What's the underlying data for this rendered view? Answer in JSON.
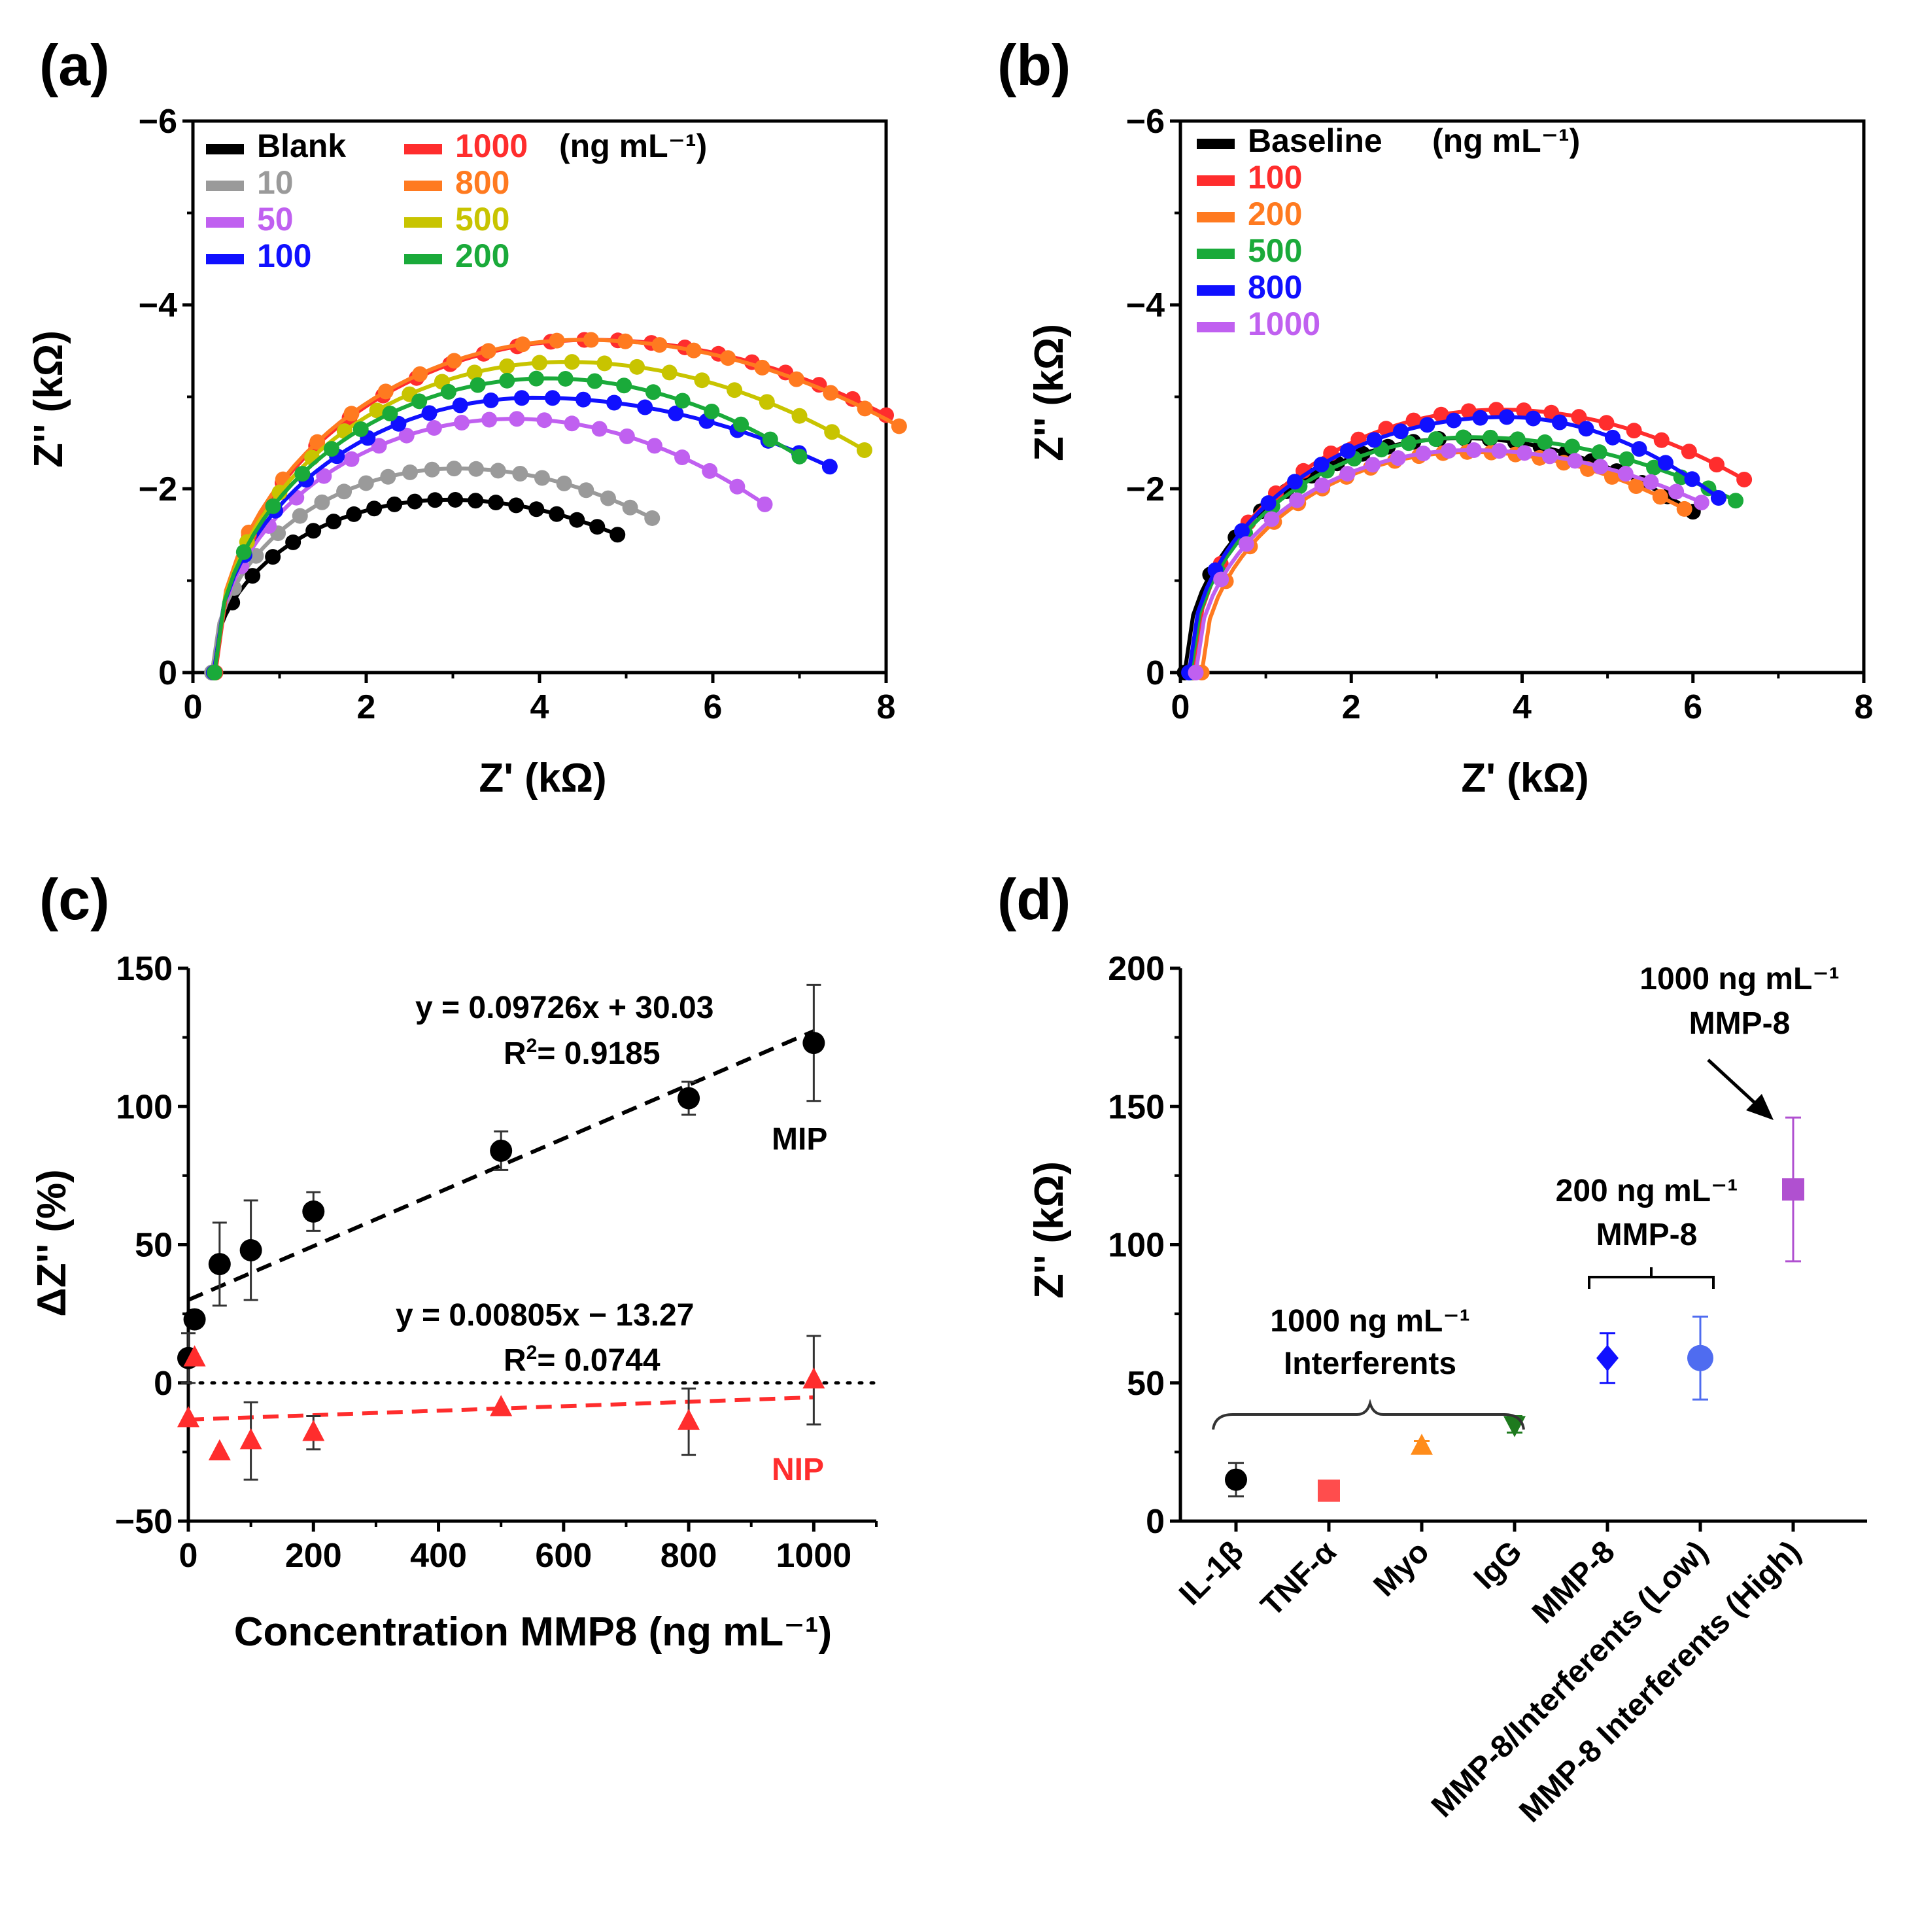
{
  "colors": {
    "black": "#000000",
    "gray": "#9a9a9a",
    "violet": "#c060f0",
    "blue": "#1010ff",
    "red": "#ff2d2d",
    "orange": "#ff7a20",
    "olive": "#c8c400",
    "green": "#1aaa3a",
    "dark_green": "#1e7a1e",
    "red_light": "#ff4d4d",
    "orange_tri": "#ff8c1a",
    "purple_sq": "#b050d0",
    "blue_circle": "#4f6cf0"
  },
  "chart_data": [
    {
      "panel_label": "(a)",
      "type": "line",
      "xlabel": "Z' (kΩ)",
      "ylabel": "Z'' (kΩ)",
      "xlim": [
        0,
        8
      ],
      "ylim": [
        0,
        -6
      ],
      "xticks": [
        "0",
        "2",
        "4",
        "6",
        "8"
      ],
      "yticks": [
        "0",
        "−2",
        "−4",
        "−6"
      ],
      "legend_unit": "(ng mL⁻¹)",
      "series": [
        {
          "name": "Blank",
          "color": "black",
          "x0": 0.22,
          "R": 5.2,
          "peak_x": 2.95,
          "peak": 1.88,
          "x_end": 4.9,
          "y_end": 1.5
        },
        {
          "name": "10",
          "color": "gray",
          "x0": 0.22,
          "R": 5.7,
          "peak_x": 3.05,
          "peak": 2.22,
          "x_end": 5.3,
          "y_end": 1.68
        },
        {
          "name": "50",
          "color": "violet",
          "x0": 0.24,
          "R": 7.6,
          "peak_x": 3.7,
          "peak": 2.76,
          "x_end": 6.6,
          "y_end": 1.83
        },
        {
          "name": "100",
          "color": "blue",
          "x0": 0.24,
          "R": 8.6,
          "peak_x": 3.95,
          "peak": 2.99,
          "x_end": 7.35,
          "y_end": 2.24
        },
        {
          "name": "1000",
          "color": "red",
          "x0": 0.26,
          "R": 10.2,
          "peak_x": 4.6,
          "peak": 3.62,
          "x_end": 8.0,
          "y_end": 2.8
        },
        {
          "name": "800",
          "color": "orange",
          "x0": 0.25,
          "R": 9.8,
          "peak_x": 4.5,
          "peak": 3.62,
          "x_end": 8.15,
          "y_end": 2.68
        },
        {
          "name": "500",
          "color": "olive",
          "x0": 0.25,
          "R": 9.4,
          "peak_x": 4.3,
          "peak": 3.38,
          "x_end": 7.75,
          "y_end": 2.42
        },
        {
          "name": "200",
          "color": "green",
          "x0": 0.25,
          "R": 9.0,
          "peak_x": 4.1,
          "peak": 3.2,
          "x_end": 7.0,
          "y_end": 2.35
        }
      ]
    },
    {
      "panel_label": "(b)",
      "type": "line",
      "xlabel": "Z' (kΩ)",
      "ylabel": "Z'' (kΩ)",
      "xlim": [
        0,
        8
      ],
      "ylim": [
        0,
        -6
      ],
      "xticks": [
        "0",
        "2",
        "4",
        "6",
        "8"
      ],
      "yticks": [
        "0",
        "−2",
        "−4",
        "−6"
      ],
      "legend_unit": "(ng mL⁻¹)",
      "series": [
        {
          "name": "Baseline",
          "color": "black",
          "x0": 0.05,
          "R": 7.6,
          "peak_x": 3.3,
          "peak": 2.55,
          "x_end": 6.0,
          "y_end": 1.75
        },
        {
          "name": "100",
          "color": "red",
          "x0": 0.15,
          "R": 8.6,
          "peak_x": 3.75,
          "peak": 2.86,
          "x_end": 6.6,
          "y_end": 2.1
        },
        {
          "name": "200",
          "color": "orange",
          "x0": 0.25,
          "R": 7.2,
          "peak_x": 3.4,
          "peak": 2.4,
          "x_end": 5.9,
          "y_end": 1.78
        },
        {
          "name": "500",
          "color": "green",
          "x0": 0.12,
          "R": 8.3,
          "peak_x": 3.4,
          "peak": 2.56,
          "x_end": 6.5,
          "y_end": 1.87
        },
        {
          "name": "800",
          "color": "blue",
          "x0": 0.1,
          "R": 8.0,
          "peak_x": 3.8,
          "peak": 2.78,
          "x_end": 6.3,
          "y_end": 1.9
        },
        {
          "name": "1000",
          "color": "violet",
          "x0": 0.18,
          "R": 7.4,
          "peak_x": 3.4,
          "peak": 2.42,
          "x_end": 6.1,
          "y_end": 1.85
        }
      ]
    },
    {
      "panel_label": "(c)",
      "type": "scatter",
      "xlabel": "Concentration MMP8 (ng mL⁻¹)",
      "ylabel": "ΔZ'' (%)",
      "xlim": [
        0,
        1100
      ],
      "ylim": [
        -50,
        150
      ],
      "xticks": [
        "0",
        "200",
        "400",
        "600",
        "800",
        "1000"
      ],
      "yticks": [
        "−50",
        "0",
        "50",
        "100",
        "150"
      ],
      "series": [
        {
          "name": "MIP",
          "color": "black",
          "marker": "circle",
          "points": [
            {
              "x": 0,
              "y": 9,
              "err": 9
            },
            {
              "x": 10,
              "y": 23,
              "err": 0
            },
            {
              "x": 50,
              "y": 43,
              "err": 15
            },
            {
              "x": 100,
              "y": 48,
              "err": 18
            },
            {
              "x": 200,
              "y": 62,
              "err": 7
            },
            {
              "x": 500,
              "y": 84,
              "err": 7
            },
            {
              "x": 800,
              "y": 103,
              "err": 6
            },
            {
              "x": 1000,
              "y": 123,
              "err": 21
            }
          ],
          "fit": {
            "slope": 0.09726,
            "intercept": 30.03
          },
          "equation": "y = 0.09726x  + 30.03",
          "r2_prefix": "R",
          "r2_sup": "2",
          "r2_value": "= 0.9185"
        },
        {
          "name": "NIP",
          "color": "red",
          "marker": "triangle",
          "points": [
            {
              "x": 0,
              "y": -13,
              "err": 0
            },
            {
              "x": 10,
              "y": 9,
              "err": 0
            },
            {
              "x": 50,
              "y": -25,
              "err": 0
            },
            {
              "x": 100,
              "y": -21,
              "err": 14
            },
            {
              "x": 200,
              "y": -18,
              "err": 6
            },
            {
              "x": 500,
              "y": -9,
              "err": 0
            },
            {
              "x": 800,
              "y": -14,
              "err": 12
            },
            {
              "x": 1000,
              "y": 1,
              "err": 16
            }
          ],
          "fit": {
            "slope": 0.00805,
            "intercept": -13.27
          },
          "equation": "y = 0.00805x − 13.27",
          "r2_prefix": "R",
          "r2_sup": "2",
          "r2_value": "= 0.0744"
        }
      ],
      "zero_line": true
    },
    {
      "panel_label": "(d)",
      "type": "scatter",
      "xlabel": "",
      "ylabel": "Z'' (kΩ)",
      "ylim": [
        0,
        200
      ],
      "yticks": [
        "0",
        "50",
        "100",
        "150",
        "200"
      ],
      "categories": [
        "IL-1β",
        "TNF-α",
        "Myo",
        "IgG",
        "MMP-8",
        "MMP-8/Interferents (Low)",
        "MMP-8 Interferents (High)"
      ],
      "points": [
        {
          "value": 15,
          "err": 6,
          "marker": "circle",
          "color": "black"
        },
        {
          "value": 11,
          "err": 0,
          "marker": "square",
          "color": "red_light"
        },
        {
          "value": 27,
          "err": 2,
          "marker": "triangle",
          "color": "orange_tri"
        },
        {
          "value": 35,
          "err": 3,
          "marker": "down-triangle",
          "color": "dark_green"
        },
        {
          "value": 59,
          "err": 9,
          "marker": "diamond",
          "color": "blue"
        },
        {
          "value": 59,
          "err": 15,
          "marker": "circle",
          "color": "blue_circle"
        },
        {
          "value": 120,
          "err": 26,
          "marker": "square",
          "color": "purple_sq"
        }
      ],
      "annotations": {
        "interferents_line1": "1000 ng mL⁻¹",
        "interferents_line2": "Interferents",
        "low_line1": "200 ng mL⁻¹",
        "low_line2": "MMP-8",
        "high_line1": "1000 ng mL⁻¹",
        "high_line2": "MMP-8"
      }
    }
  ]
}
